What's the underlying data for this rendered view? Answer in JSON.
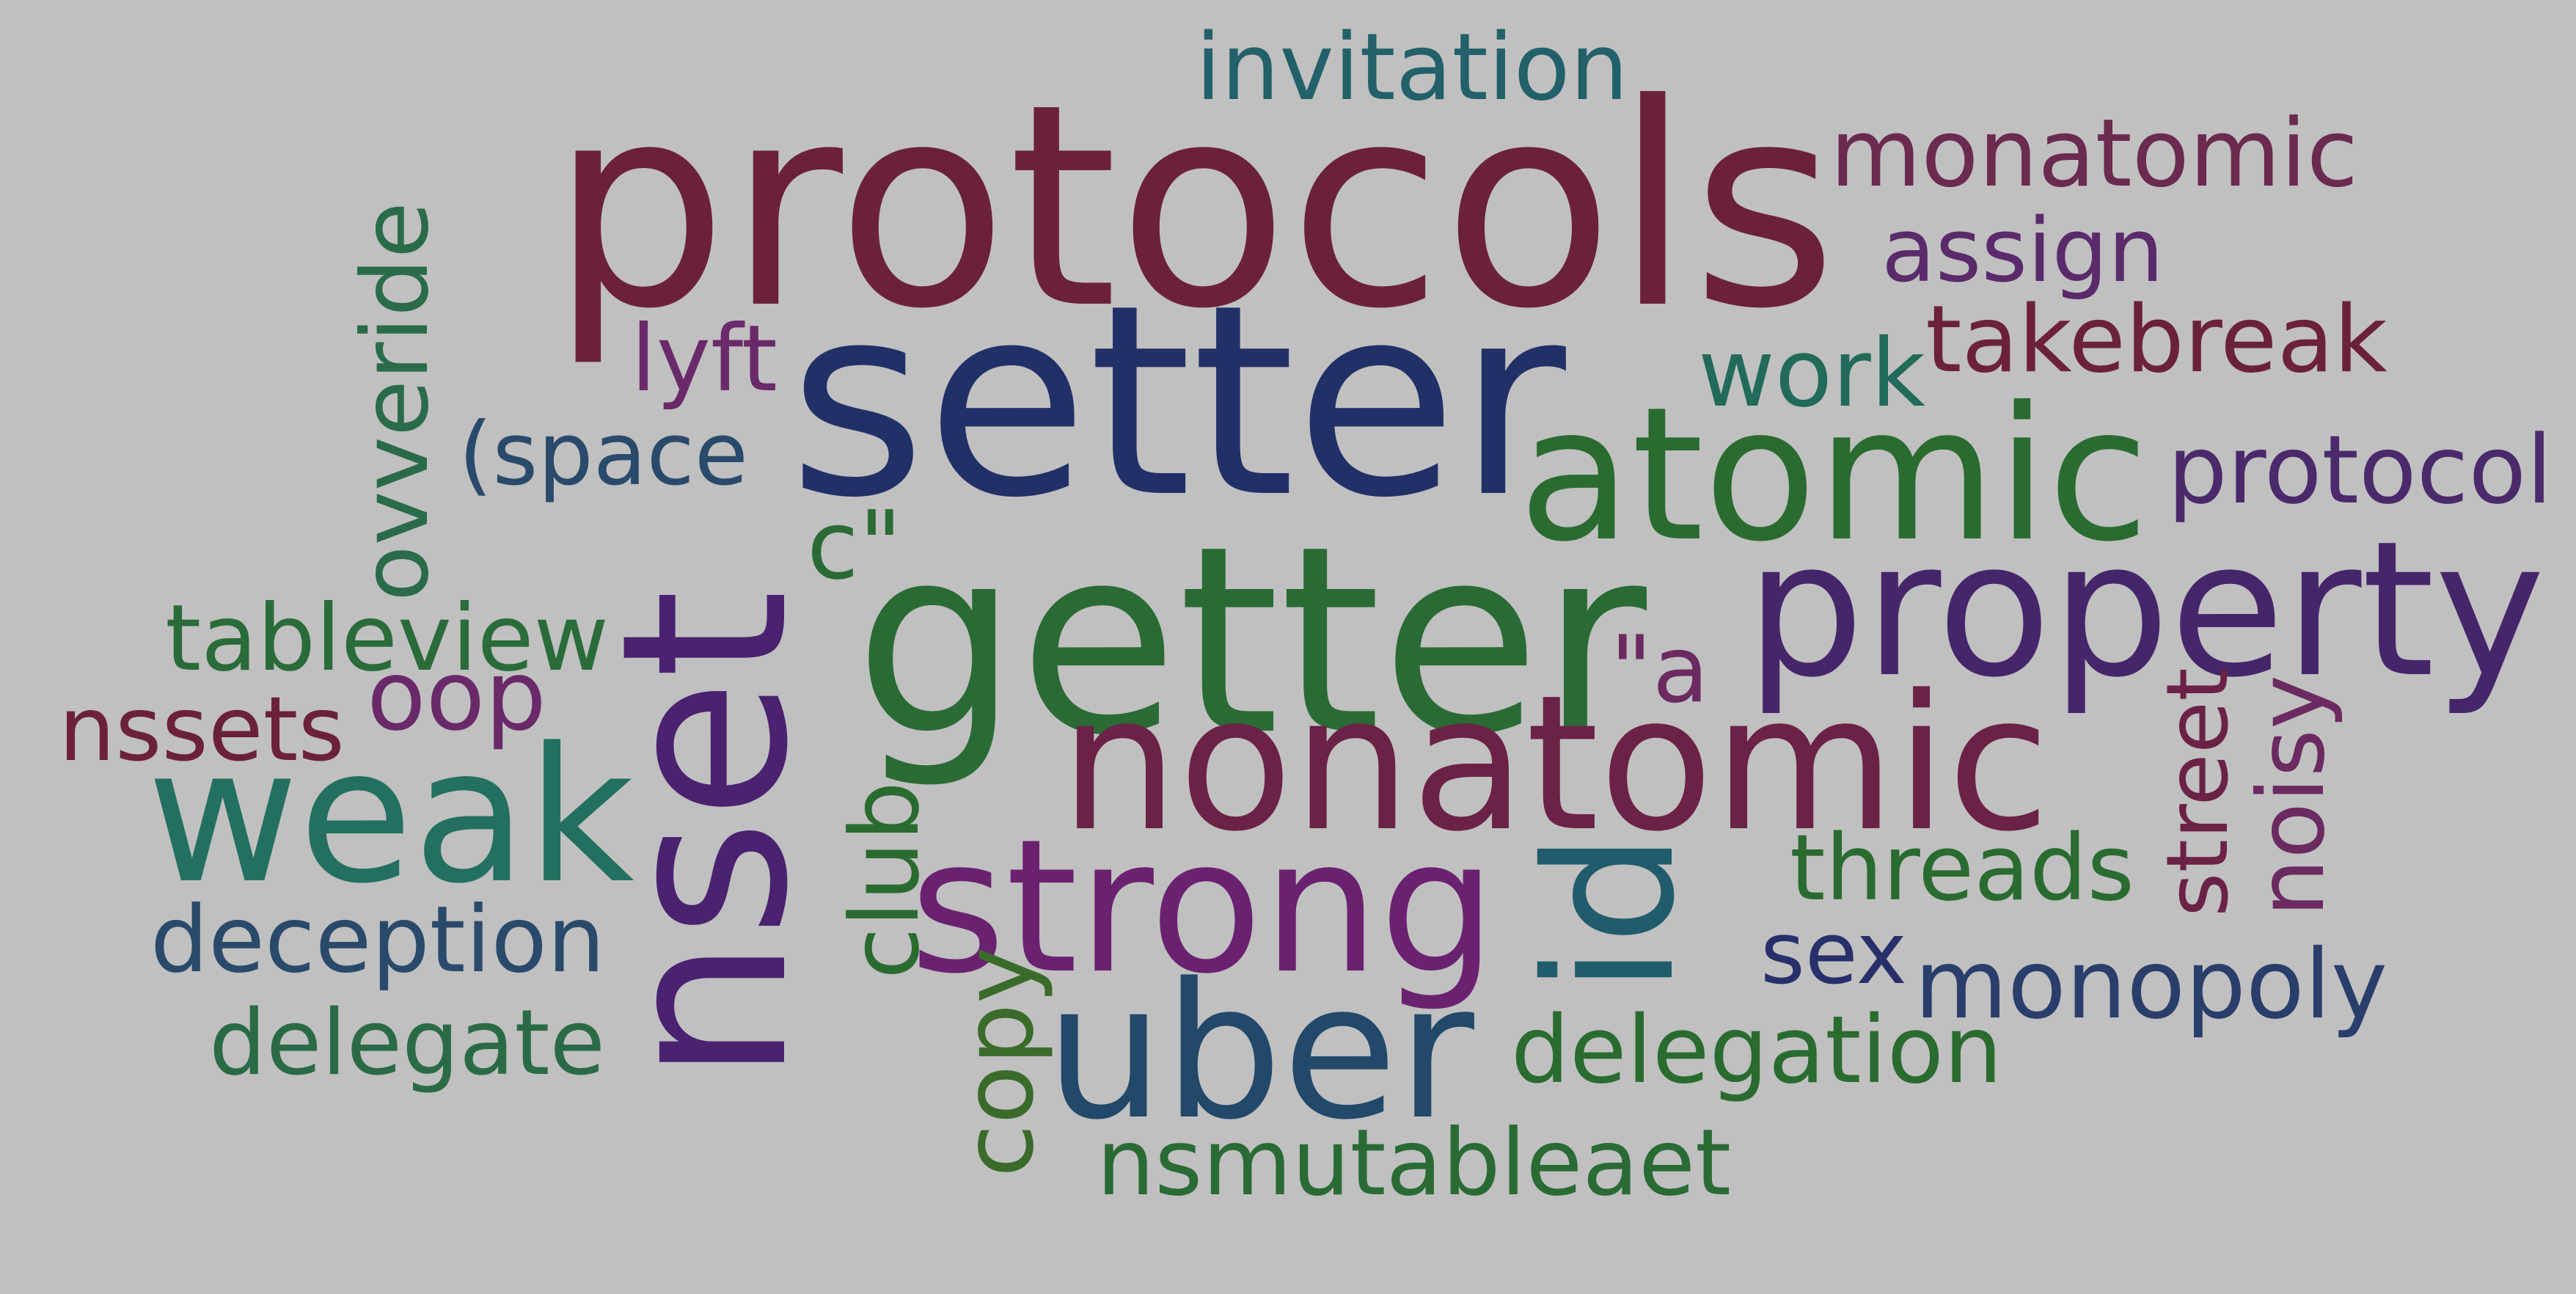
{
  "cloud": {
    "background": "#c0c0c0",
    "words": [
      {
        "text": "protocols",
        "color": "#6b2239"
      },
      {
        "text": "invitation",
        "color": "#22606a"
      },
      {
        "text": "monatomic",
        "color": "#6b2a4f"
      },
      {
        "text": "assign",
        "color": "#5a2a6b"
      },
      {
        "text": "takebreak",
        "color": "#6b2239"
      },
      {
        "text": "protocol",
        "color": "#4a2a6b"
      },
      {
        "text": "setter",
        "color": "#223068"
      },
      {
        "text": "atomic",
        "color": "#2a6b30"
      },
      {
        "text": "work",
        "color": "#226a5a"
      },
      {
        "text": "lyft",
        "color": "#6a2a6a"
      },
      {
        "text": "(space",
        "color": "#2a4a6b"
      },
      {
        "text": "ovveride",
        "color": "#2a6b4a"
      },
      {
        "text": "getter",
        "color": "#2a6b35"
      },
      {
        "text": "c\"",
        "color": "#2a6b35"
      },
      {
        "text": "property",
        "color": "#45266a"
      },
      {
        "text": "tableview",
        "color": "#2a6b3a"
      },
      {
        "text": "oop",
        "color": "#6a2a6a"
      },
      {
        "text": "nssets",
        "color": "#6b2239"
      },
      {
        "text": "\"a",
        "color": "#6b2a60"
      },
      {
        "text": "nset",
        "color": "#4a2270"
      },
      {
        "text": "nonatomic",
        "color": "#6b2246"
      },
      {
        "text": "weak",
        "color": "#237060"
      },
      {
        "text": "strong",
        "color": "#6a2270"
      },
      {
        "text": "club",
        "color": "#2a6b30"
      },
      {
        "text": "id",
        "color": "#205c6b"
      },
      {
        "text": "threads",
        "color": "#2a6b30"
      },
      {
        "text": "street",
        "color": "#6b2246"
      },
      {
        "text": "noisy",
        "color": "#6b2a60"
      },
      {
        "text": "deception",
        "color": "#2a4a6b"
      },
      {
        "text": "sex",
        "color": "#28306b"
      },
      {
        "text": "monopoly",
        "color": "#2a3e6b"
      },
      {
        "text": "delegate",
        "color": "#2a6b45"
      },
      {
        "text": "copy",
        "color": "#3a6b2a"
      },
      {
        "text": "uber",
        "color": "#22486a"
      },
      {
        "text": "delegation",
        "color": "#2a6b30"
      },
      {
        "text": "nsmutableaet",
        "color": "#2a6b35"
      }
    ]
  }
}
